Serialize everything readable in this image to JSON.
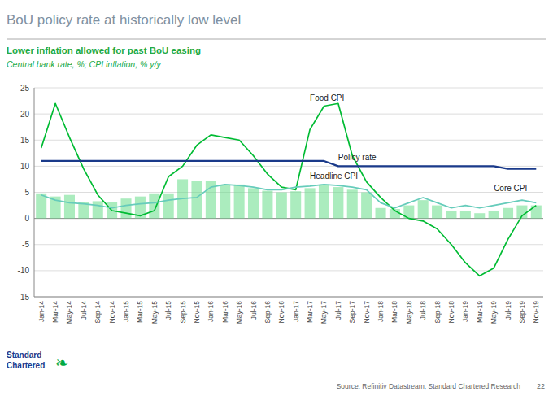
{
  "chart_data": {
    "type": "combo",
    "title": "BoU policy rate at historically low level",
    "subtitle": "Lower inflation allowed for past BoU easing",
    "subtitle2": "Central bank rate, %; CPI inflation, % y/y",
    "source": "Source: Refinitiv Datastream, Standard Chartered Research",
    "page": "22",
    "logo": [
      "Standard",
      "Chartered"
    ],
    "logo_mark": "❧",
    "categories": [
      "Jan-14",
      "Mar-14",
      "May-14",
      "Jul-14",
      "Sep-14",
      "Nov-14",
      "Jan-15",
      "Mar-15",
      "May-15",
      "Jul-15",
      "Sep-15",
      "Nov-15",
      "Jan-16",
      "Mar-16",
      "May-16",
      "Jul-16",
      "Sep-16",
      "Nov-16",
      "Jan-17",
      "Mar-17",
      "May-17",
      "Jul-17",
      "Sep-17",
      "Nov-17",
      "Jan-18",
      "Mar-18",
      "May-18",
      "Jul-18",
      "Sep-18",
      "Nov-18",
      "Jan-19",
      "Mar-19",
      "May-19",
      "Jul-19",
      "Sep-19",
      "Nov-19"
    ],
    "series": [
      {
        "type": "bar",
        "color": "#66dd88",
        "values": [
          4.8,
          4.2,
          4.5,
          3.2,
          3.3,
          3.2,
          3.8,
          4.2,
          4.8,
          4.8,
          7.5,
          7.2,
          7.2,
          6.5,
          6.5,
          5.8,
          5.3,
          5.0,
          5.2,
          5.8,
          6.5,
          6.0,
          5.5,
          5.0,
          2.0,
          1.8,
          2.5,
          3.5,
          2.5,
          1.5,
          1.5,
          1.0,
          1.5,
          2.0,
          2.5,
          2.5
        ]
      },
      {
        "type": "line",
        "color": "#00bb33",
        "values": [
          13.5,
          22.0,
          15.5,
          9.5,
          4.5,
          1.5,
          1.0,
          0.5,
          1.5,
          8.0,
          10.0,
          14.0,
          16.0,
          15.5,
          15.0,
          12.0,
          8.5,
          6.0,
          5.5,
          17.0,
          21.5,
          22.0,
          12.0,
          7.0,
          4.0,
          1.5,
          0.0,
          -0.5,
          -2.0,
          -5.0,
          -8.5,
          -11.0,
          -9.5,
          -4.0,
          0.5,
          2.5
        ]
      },
      {
        "type": "line",
        "color": "#66ccbb",
        "values": [
          4.5,
          3.5,
          3.0,
          2.8,
          2.5,
          2.0,
          2.5,
          2.8,
          3.0,
          3.5,
          3.8,
          4.0,
          6.0,
          6.5,
          6.3,
          6.0,
          5.5,
          5.5,
          6.0,
          6.2,
          6.5,
          6.3,
          6.0,
          5.5,
          3.0,
          2.0,
          3.0,
          4.0,
          3.0,
          2.0,
          2.5,
          2.0,
          2.5,
          3.0,
          3.5,
          3.0
        ]
      },
      {
        "type": "line",
        "color": "#1a3a8a",
        "values": [
          11.0,
          11.0,
          11.0,
          11.0,
          11.0,
          11.0,
          11.0,
          11.0,
          11.0,
          11.0,
          11.0,
          11.0,
          11.0,
          11.0,
          11.0,
          11.0,
          11.0,
          11.0,
          11.0,
          11.0,
          11.0,
          10.0,
          10.0,
          10.0,
          10.0,
          10.0,
          10.0,
          10.0,
          10.0,
          10.0,
          10.0,
          10.0,
          10.0,
          9.5,
          9.5,
          9.5
        ]
      }
    ],
    "annotations": [
      {
        "text": "Food CPI",
        "x": "Mar-17",
        "y": 22.5
      },
      {
        "text": "Policy rate",
        "x": "Jul-17",
        "y": 11.2
      },
      {
        "text": "Headline CPI",
        "x": "Mar-17",
        "y": 7.5
      },
      {
        "text": "Core CPI",
        "x": "May-19",
        "y": 5.2
      }
    ],
    "ylim": [
      -15,
      25
    ],
    "yticks": [
      -15,
      -10,
      -5,
      0,
      5,
      10,
      15,
      20,
      25
    ],
    "grid": true
  }
}
